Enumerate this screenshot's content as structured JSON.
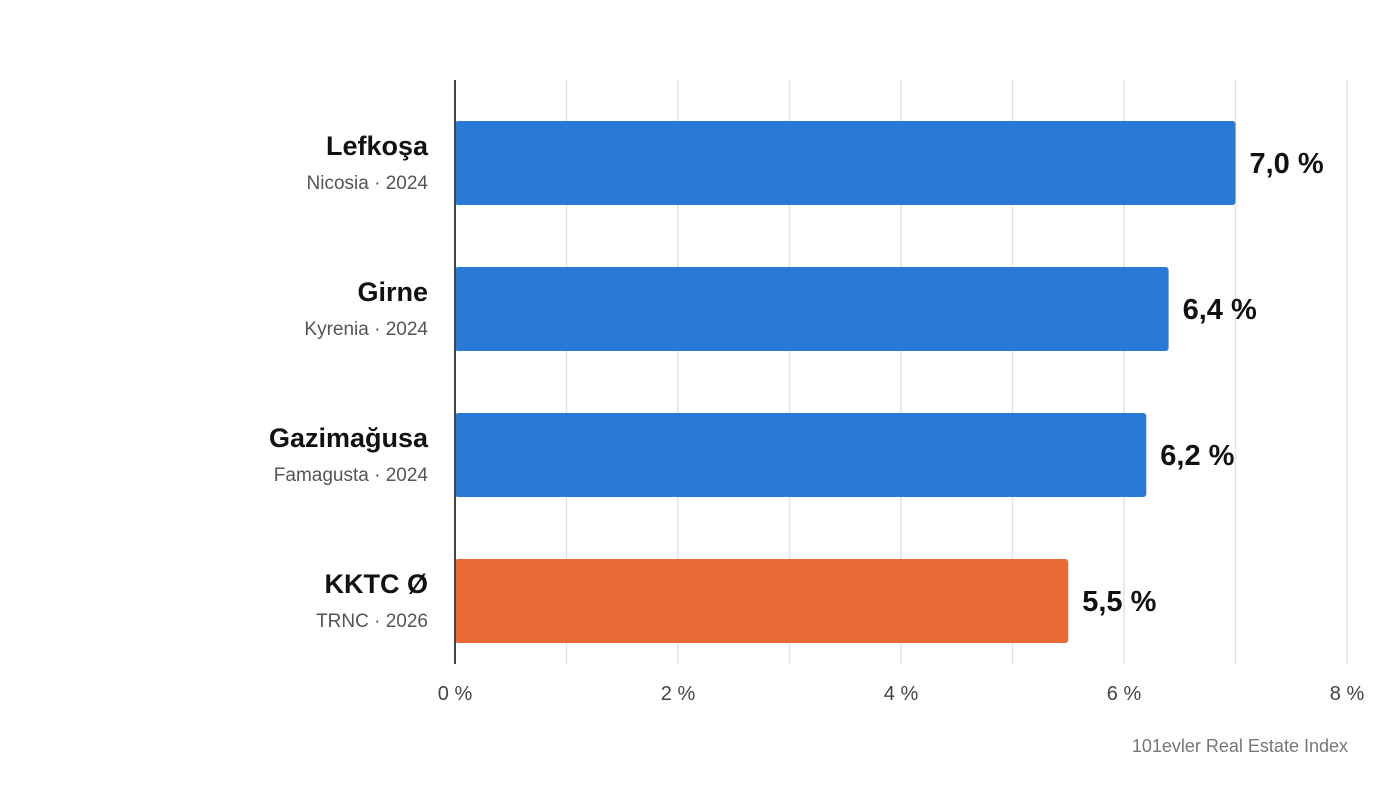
{
  "chart_data": {
    "type": "bar",
    "orientation": "horizontal",
    "categories": [
      {
        "name": "Lefkoşa",
        "subtitle": "Nicosia · 2024",
        "value": 7.0,
        "value_label": "7,0 %",
        "color": "#2b79d6"
      },
      {
        "name": "Girne",
        "subtitle": "Kyrenia · 2024",
        "value": 6.4,
        "value_label": "6,4 %",
        "color": "#2b79d6"
      },
      {
        "name": "Gazimağusa",
        "subtitle": "Famagusta · 2024",
        "value": 6.2,
        "value_label": "6,2 %",
        "color": "#2b79d6"
      },
      {
        "name": "KKTC Ø",
        "subtitle": "TRNC · 2026",
        "value": 5.5,
        "value_label": "5,5 %",
        "color": "#eb6a35"
      }
    ],
    "xlim": [
      0,
      8
    ],
    "x_ticks": [
      {
        "value": 0,
        "label": "0 %"
      },
      {
        "value": 2,
        "label": "2 %"
      },
      {
        "value": 4,
        "label": "4 %"
      },
      {
        "value": 6,
        "label": "6 %"
      },
      {
        "value": 8,
        "label": "8 %"
      }
    ],
    "minor_grid_step": 1,
    "grid": true,
    "source": "101evler Real Estate Index"
  }
}
